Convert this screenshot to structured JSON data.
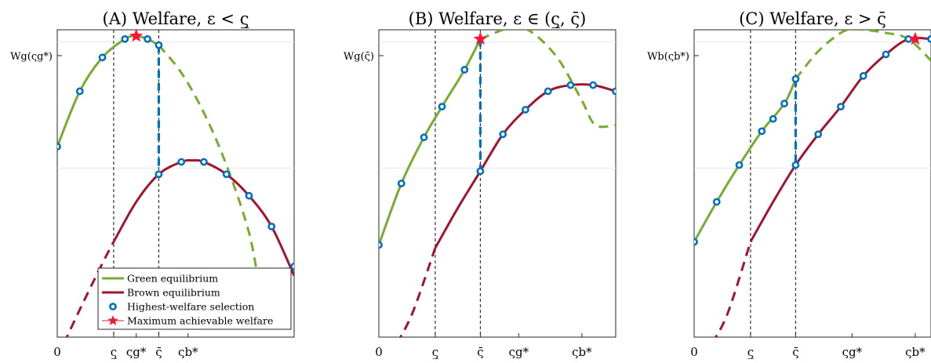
{
  "colors": {
    "green": "#77AC30",
    "brown": "#A2142F",
    "marker": "#0072BD",
    "star": "#FF1133",
    "vline": "#0072BD"
  },
  "legend": {
    "green": "Green equilibrium",
    "brown": "Brown equilibrium",
    "selection": "Highest-welfare selection",
    "maximum": "Maximum achievable welfare"
  },
  "chart_data": [
    {
      "type": "line",
      "title": "(A) Welfare, ε < ς̲",
      "ytick_label": "Wg(ςg*)",
      "xticks": [
        {
          "x": 0,
          "label": "0"
        },
        {
          "x": 2.5,
          "label": "ς̲"
        },
        {
          "x": 3.5,
          "label": "ςg*"
        },
        {
          "x": 4.5,
          "label": "ς̄"
        },
        {
          "x": 5.8,
          "label": "ςb*"
        }
      ],
      "xlim": [
        0,
        10.5
      ],
      "ylim": [
        0,
        1
      ],
      "vlines": [
        2.5,
        4.5
      ],
      "jump_x": 4.5,
      "star": {
        "x": 3.5,
        "y": 0.98
      },
      "green_points": [
        [
          0,
          0.62
        ],
        [
          1,
          0.8
        ],
        [
          2,
          0.91
        ],
        [
          3,
          0.97
        ],
        [
          4,
          0.97
        ],
        [
          4.5,
          0.95
        ]
      ],
      "brown_points": [
        [
          4.5,
          0.53
        ],
        [
          5.5,
          0.57
        ],
        [
          6.5,
          0.57
        ],
        [
          7.5,
          0.53
        ],
        [
          8.5,
          0.46
        ],
        [
          9.5,
          0.36
        ],
        [
          10.5,
          0.23
        ]
      ],
      "green_curve": {
        "solid": [
          [
            0,
            0.62
          ],
          [
            1,
            0.8
          ],
          [
            2,
            0.91
          ],
          [
            3,
            0.97
          ],
          [
            3.5,
            0.98
          ],
          [
            4,
            0.97
          ],
          [
            4.5,
            0.95
          ]
        ],
        "dashed": [
          [
            4.5,
            0.95
          ],
          [
            5.5,
            0.86
          ],
          [
            6.5,
            0.73
          ],
          [
            7.5,
            0.56
          ],
          [
            8.5,
            0.34
          ],
          [
            9.2,
            0.1
          ],
          [
            10.1,
            0.05
          ]
        ]
      },
      "brown_curve": {
        "solid": [
          [
            2.5,
            0.31
          ],
          [
            3.5,
            0.44
          ],
          [
            4.5,
            0.53
          ],
          [
            5.5,
            0.57
          ],
          [
            6,
            0.575
          ],
          [
            6.5,
            0.57
          ],
          [
            7.5,
            0.53
          ],
          [
            8.5,
            0.46
          ],
          [
            9.5,
            0.36
          ],
          [
            10.5,
            0.2
          ]
        ],
        "dashed": [
          [
            0.3,
            -0.02
          ],
          [
            1,
            0.09
          ],
          [
            2,
            0.24
          ],
          [
            2.5,
            0.31
          ]
        ]
      },
      "legend_shown": true
    },
    {
      "type": "line",
      "title": "(B) Welfare, ε ∈ (ς̲, ς̄)",
      "ytick_label": "Wg(ς̄)",
      "xticks": [
        {
          "x": 0,
          "label": "0"
        },
        {
          "x": 2.5,
          "label": "ς̲"
        },
        {
          "x": 4.5,
          "label": "ς̄"
        },
        {
          "x": 6.2,
          "label": "ςg*"
        },
        {
          "x": 9.0,
          "label": "ςb*"
        }
      ],
      "xlim": [
        0,
        10.5
      ],
      "ylim": [
        0,
        1
      ],
      "vlines": [
        2.5,
        4.5
      ],
      "jump_x": 4.5,
      "star": {
        "x": 4.5,
        "y": 0.97
      },
      "green_points": [
        [
          0,
          0.3
        ],
        [
          1,
          0.5
        ],
        [
          2,
          0.65
        ],
        [
          2.8,
          0.75
        ],
        [
          3.8,
          0.87
        ]
      ],
      "brown_points": [
        [
          4.5,
          0.54
        ],
        [
          5.5,
          0.66
        ],
        [
          6.5,
          0.74
        ],
        [
          7.5,
          0.8
        ],
        [
          8.5,
          0.82
        ],
        [
          9.5,
          0.82
        ],
        [
          10.5,
          0.8
        ]
      ],
      "green_curve": {
        "solid": [
          [
            0,
            0.3
          ],
          [
            1,
            0.5
          ],
          [
            2,
            0.65
          ],
          [
            2.8,
            0.75
          ],
          [
            3.8,
            0.87
          ],
          [
            4.5,
            0.97
          ]
        ],
        "dashed": [
          [
            4.5,
            0.97
          ],
          [
            5.5,
            1.0
          ],
          [
            6.2,
            1.01
          ],
          [
            7,
            0.98
          ],
          [
            8,
            0.9
          ],
          [
            9,
            0.77
          ],
          [
            9.6,
            0.69
          ],
          [
            10.5,
            0.69
          ]
        ]
      },
      "brown_curve": {
        "solid": [
          [
            2.5,
            0.29
          ],
          [
            3.5,
            0.42
          ],
          [
            4.5,
            0.54
          ],
          [
            5.5,
            0.66
          ],
          [
            6.5,
            0.74
          ],
          [
            7.5,
            0.8
          ],
          [
            8.5,
            0.82
          ],
          [
            9.5,
            0.82
          ],
          [
            10.5,
            0.8
          ]
        ],
        "dashed": [
          [
            0.8,
            -0.02
          ],
          [
            1.5,
            0.08
          ],
          [
            2.5,
            0.29
          ]
        ]
      },
      "legend_shown": false
    },
    {
      "type": "line",
      "title": "(C) Welfare, ε > ς̄",
      "ytick_label": "Wb(ςb*)",
      "xticks": [
        {
          "x": 0,
          "label": "0"
        },
        {
          "x": 2.5,
          "label": "ς̲"
        },
        {
          "x": 4.5,
          "label": "ς̄"
        },
        {
          "x": 7.0,
          "label": "ςg*"
        },
        {
          "x": 9.8,
          "label": "ςb*"
        }
      ],
      "xlim": [
        0,
        10.5
      ],
      "ylim": [
        0,
        1
      ],
      "vlines": [
        2.5,
        4.5
      ],
      "jump_x": 4.5,
      "star": {
        "x": 9.8,
        "y": 0.97
      },
      "green_points": [
        [
          0,
          0.31
        ],
        [
          1,
          0.44
        ],
        [
          2,
          0.56
        ],
        [
          3,
          0.67
        ],
        [
          4,
          0.76
        ],
        [
          4.5,
          0.84
        ],
        [
          3.5,
          0.71
        ]
      ],
      "brown_points": [
        [
          4.5,
          0.56
        ],
        [
          5.5,
          0.66
        ],
        [
          6.5,
          0.75
        ],
        [
          7.5,
          0.85
        ],
        [
          8.5,
          0.92
        ],
        [
          9.5,
          0.97
        ],
        [
          10.5,
          0.97
        ]
      ],
      "green_curve": {
        "solid": [
          [
            0,
            0.31
          ],
          [
            1,
            0.44
          ],
          [
            2,
            0.56
          ],
          [
            3,
            0.67
          ],
          [
            4,
            0.76
          ],
          [
            4.5,
            0.84
          ]
        ],
        "dashed": [
          [
            4.5,
            0.84
          ],
          [
            5.5,
            0.93
          ],
          [
            6.5,
            0.99
          ],
          [
            7,
            1.0
          ],
          [
            7.5,
            1.0
          ],
          [
            8.5,
            0.99
          ],
          [
            9.5,
            0.97
          ],
          [
            10.5,
            0.9
          ]
        ]
      },
      "brown_curve": {
        "solid": [
          [
            2.5,
            0.31
          ],
          [
            3.5,
            0.44
          ],
          [
            4.5,
            0.56
          ],
          [
            5.5,
            0.66
          ],
          [
            6.5,
            0.75
          ],
          [
            7.5,
            0.85
          ],
          [
            8.5,
            0.92
          ],
          [
            9.5,
            0.97
          ],
          [
            10.5,
            0.97
          ]
        ],
        "dashed": [
          [
            0.8,
            -0.02
          ],
          [
            1.5,
            0.08
          ],
          [
            2.5,
            0.31
          ]
        ]
      },
      "legend_shown": false
    }
  ]
}
